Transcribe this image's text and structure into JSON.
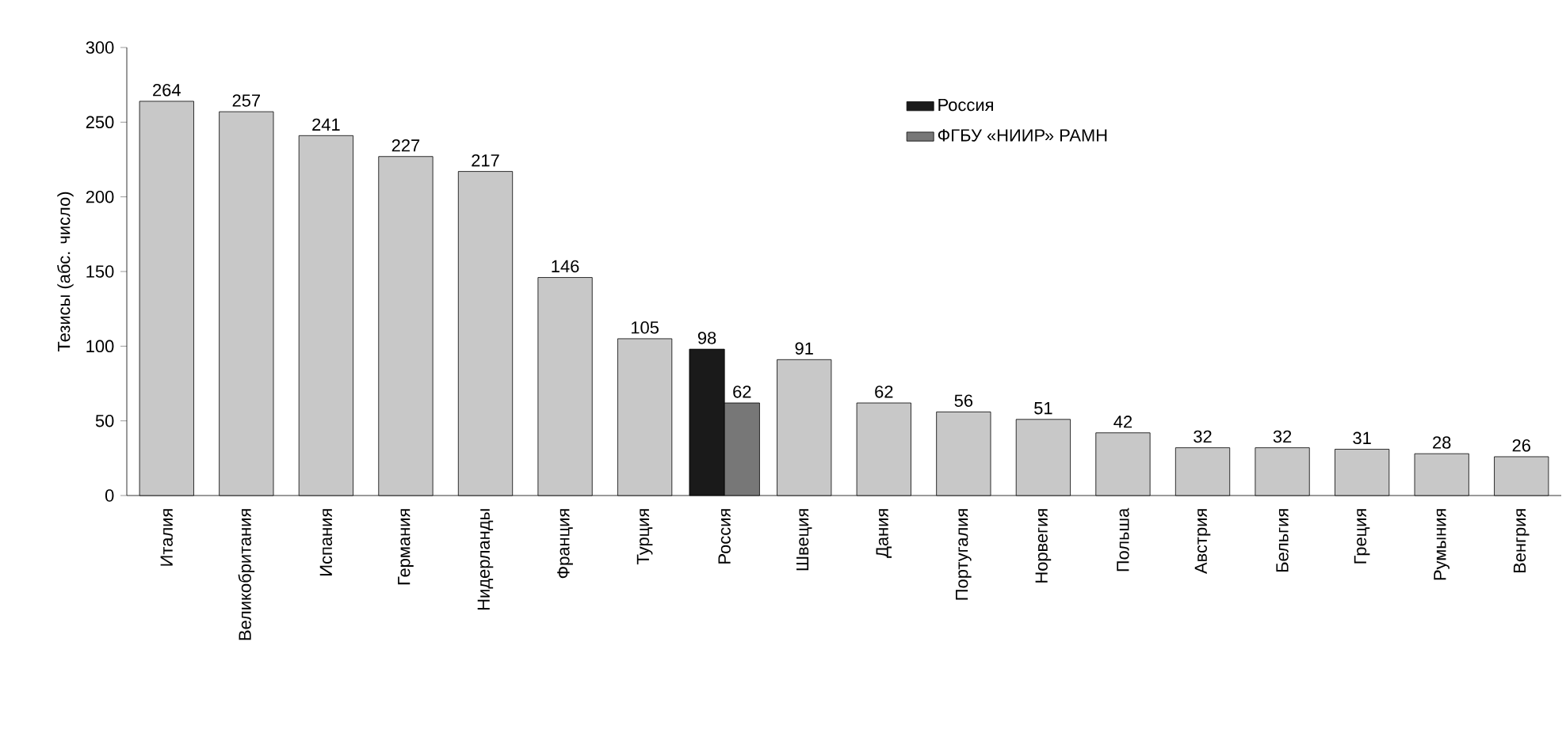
{
  "chart_data": {
    "type": "bar",
    "ylabel": "Тезисы (абс. число)",
    "categories": [
      "Италия",
      "Великобритания",
      "Испания",
      "Германия",
      "Нидерланды",
      "Франция",
      "Турция",
      "Россия",
      "Швеция",
      "Дания",
      "Португалия",
      "Норвегия",
      "Польша",
      "Австрия",
      "Бельгия",
      "Греция",
      "Румыния",
      "Венгрия"
    ],
    "series": [
      {
        "color": "#c8c8c8",
        "values": [
          264,
          257,
          241,
          227,
          217,
          146,
          105,
          null,
          91,
          62,
          56,
          51,
          42,
          32,
          32,
          31,
          28,
          26
        ]
      },
      {
        "name": "Россия",
        "color": "#1a1a1a",
        "values": [
          null,
          null,
          null,
          null,
          null,
          null,
          null,
          98,
          null,
          null,
          null,
          null,
          null,
          null,
          null,
          null,
          null,
          null
        ]
      },
      {
        "name": "ФГБУ «НИИР» РАМН",
        "color": "#777777",
        "values": [
          null,
          null,
          null,
          null,
          null,
          null,
          null,
          62,
          null,
          null,
          null,
          null,
          null,
          null,
          null,
          null,
          null,
          null
        ]
      }
    ],
    "ylim": [
      0,
      300
    ],
    "yticks": [
      0,
      50,
      100,
      150,
      200,
      250,
      300
    ],
    "data_labels": true,
    "legend": "top"
  }
}
